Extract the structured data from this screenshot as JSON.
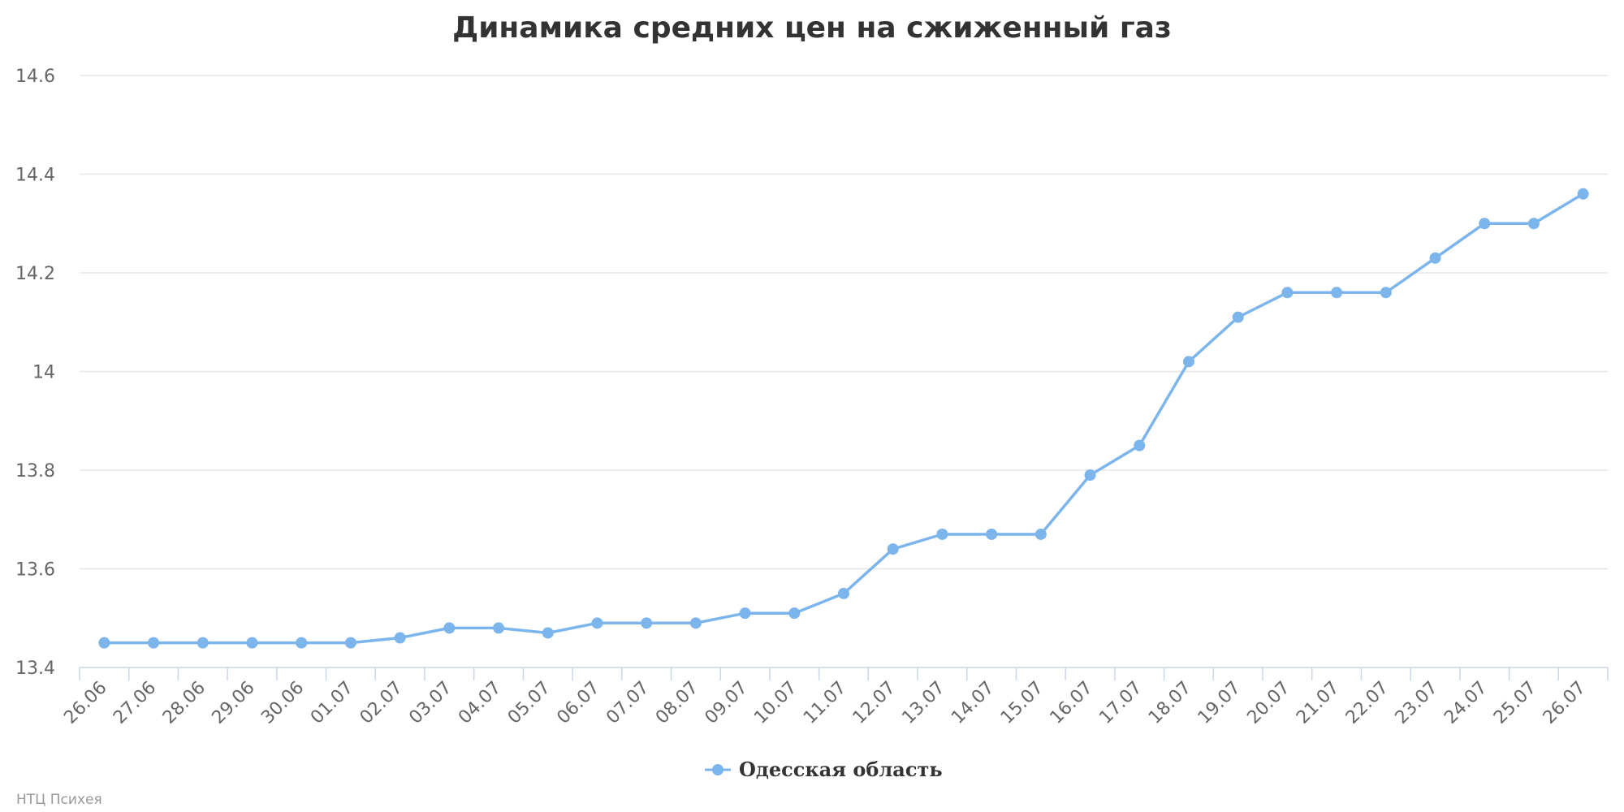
{
  "colors": {
    "series": "#7cb5ec",
    "grid": "#e6e6e6",
    "axis": "#ccd6eb",
    "text": "#333333",
    "tick_text": "#666666",
    "credits": "#999999"
  },
  "chart_data": {
    "type": "line",
    "title": "Динамика средних цен на сжиженный газ",
    "xlabel": "",
    "ylabel": "",
    "ylim": [
      13.4,
      14.6
    ],
    "yticks": [
      "13.4",
      "13.6",
      "13.8",
      "14",
      "14.2",
      "14.4",
      "14.6"
    ],
    "grid": true,
    "legend_position": "bottom-center",
    "categories": [
      "26.06",
      "27.06",
      "28.06",
      "29.06",
      "30.06",
      "01.07",
      "02.07",
      "03.07",
      "04.07",
      "05.07",
      "06.07",
      "07.07",
      "08.07",
      "09.07",
      "10.07",
      "11.07",
      "12.07",
      "13.07",
      "14.07",
      "15.07",
      "16.07",
      "17.07",
      "18.07",
      "19.07",
      "20.07",
      "21.07",
      "22.07",
      "23.07",
      "24.07",
      "25.07",
      "26.07"
    ],
    "series": [
      {
        "name": "Одесская область",
        "values": [
          13.45,
          13.45,
          13.45,
          13.45,
          13.45,
          13.45,
          13.46,
          13.48,
          13.48,
          13.47,
          13.49,
          13.49,
          13.49,
          13.51,
          13.51,
          13.55,
          13.64,
          13.67,
          13.67,
          13.67,
          13.79,
          13.85,
          14.02,
          14.11,
          14.16,
          14.16,
          14.16,
          14.23,
          14.3,
          14.3,
          14.36
        ]
      }
    ]
  },
  "credits": "НТЦ Психея"
}
